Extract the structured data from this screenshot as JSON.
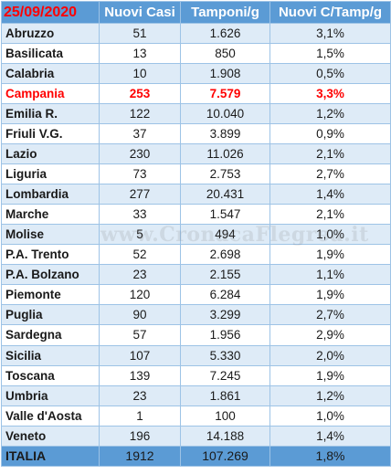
{
  "header": {
    "date": "25/09/2020",
    "col_new_cases": "Nuovi Casi",
    "col_swabs": "Tamponi/g",
    "col_ratio": "Nuovi C/Tamp/g"
  },
  "rows": [
    {
      "region": "Abruzzo",
      "cases": "51",
      "swabs": "1.626",
      "ratio": "3,1%"
    },
    {
      "region": "Basilicata",
      "cases": "13",
      "swabs": "850",
      "ratio": "1,5%"
    },
    {
      "region": "Calabria",
      "cases": "10",
      "swabs": "1.908",
      "ratio": "0,5%"
    },
    {
      "region": "Campania",
      "cases": "253",
      "swabs": "7.579",
      "ratio": "3,3%",
      "highlight": true
    },
    {
      "region": "Emilia R.",
      "cases": "122",
      "swabs": "10.040",
      "ratio": "1,2%"
    },
    {
      "region": "Friuli V.G.",
      "cases": "37",
      "swabs": "3.899",
      "ratio": "0,9%"
    },
    {
      "region": "Lazio",
      "cases": "230",
      "swabs": "11.026",
      "ratio": "2,1%"
    },
    {
      "region": "Liguria",
      "cases": "73",
      "swabs": "2.753",
      "ratio": "2,7%"
    },
    {
      "region": "Lombardia",
      "cases": "277",
      "swabs": "20.431",
      "ratio": "1,4%"
    },
    {
      "region": "Marche",
      "cases": "33",
      "swabs": "1.547",
      "ratio": "2,1%"
    },
    {
      "region": "Molise",
      "cases": "5",
      "swabs": "494",
      "ratio": "1,0%"
    },
    {
      "region": "P.A.  Trento",
      "cases": "52",
      "swabs": "2.698",
      "ratio": "1,9%"
    },
    {
      "region": "P.A. Bolzano",
      "cases": "23",
      "swabs": "2.155",
      "ratio": "1,1%"
    },
    {
      "region": "Piemonte",
      "cases": "120",
      "swabs": "6.284",
      "ratio": "1,9%"
    },
    {
      "region": "Puglia",
      "cases": "90",
      "swabs": "3.299",
      "ratio": "2,7%"
    },
    {
      "region": "Sardegna",
      "cases": "57",
      "swabs": "1.956",
      "ratio": "2,9%"
    },
    {
      "region": "Sicilia",
      "cases": "107",
      "swabs": "5.330",
      "ratio": "2,0%"
    },
    {
      "region": "Toscana",
      "cases": "139",
      "swabs": "7.245",
      "ratio": "1,9%"
    },
    {
      "region": "Umbria",
      "cases": "23",
      "swabs": "1.861",
      "ratio": "1,2%"
    },
    {
      "region": "Valle d'Aosta",
      "cases": "1",
      "swabs": "100",
      "ratio": "1,0%"
    },
    {
      "region": "Veneto",
      "cases": "196",
      "swabs": "14.188",
      "ratio": "1,4%"
    }
  ],
  "total": {
    "region": "ITALIA",
    "cases": "1912",
    "swabs": "107.269",
    "ratio": "1,8%"
  },
  "watermark": "www.CronacaFlegrea.it",
  "colors": {
    "header_bg": "#5b9bd5",
    "band_light": "#deebf7",
    "highlight": "#ff0000",
    "border": "#9dc3e6"
  }
}
